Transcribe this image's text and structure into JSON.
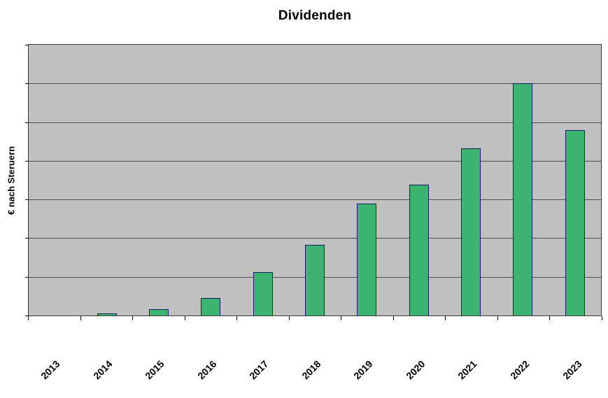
{
  "chart_data": {
    "type": "bar",
    "title": "Dividenden",
    "xlabel": "",
    "ylabel": "€ nach Steruern",
    "categories": [
      "2013",
      "2014",
      "2015",
      "2016",
      "2017",
      "2018",
      "2019",
      "2020",
      "2021",
      "2022",
      "2023"
    ],
    "values": [
      0,
      0.05,
      0.16,
      0.45,
      1.13,
      1.82,
      2.9,
      3.38,
      4.33,
      6.0,
      4.8
    ],
    "ylim": [
      0,
      7
    ],
    "y_divisions": 7,
    "grid": true,
    "legend_position": "none",
    "y_tick_labels_visible": false,
    "data_labels_visible": false,
    "colors": {
      "bar_fill": "#3cb371",
      "bar_border": "#1b1b66",
      "plot_bg": "#c0c0c0",
      "gridline": "#4d4d4d",
      "axis": "#000000",
      "text": "#000000",
      "page_bg": "#ffffff"
    }
  }
}
